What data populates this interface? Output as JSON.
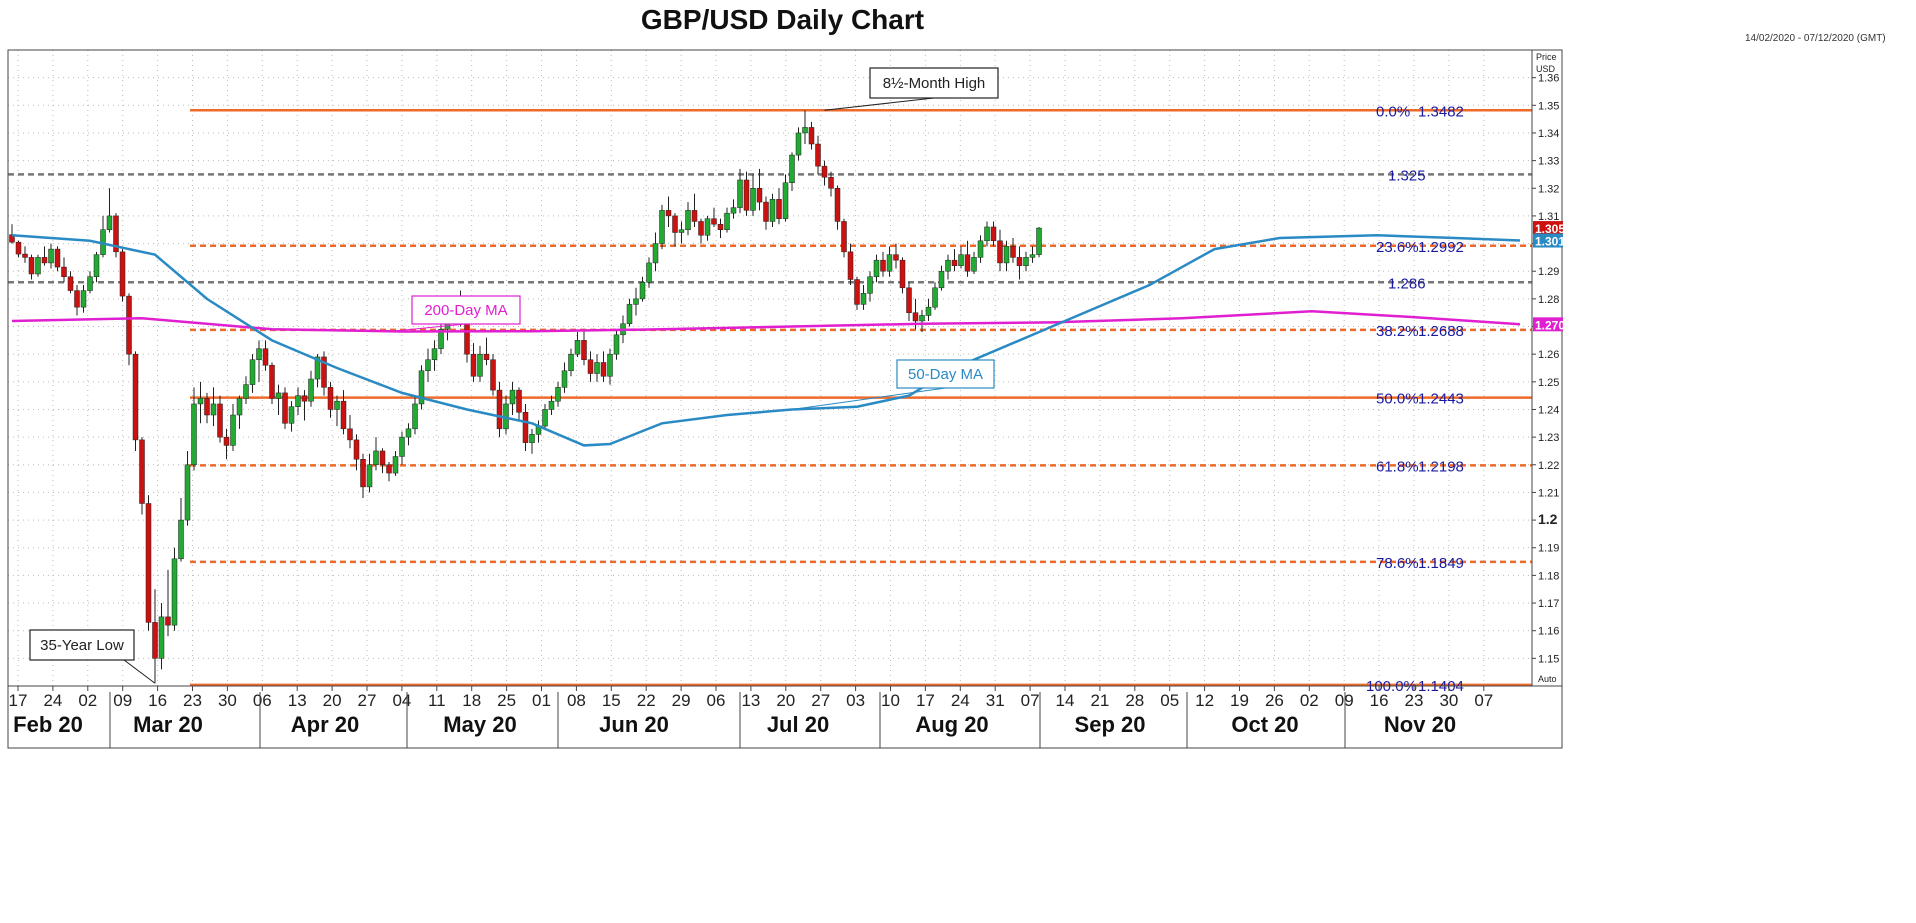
{
  "title": "GBP/USD Daily Chart",
  "date_range": "14/02/2020 - 07/12/2020 (GMT)",
  "axis": {
    "price_label": "Price",
    "unit_label": "USD",
    "auto_label": "Auto"
  },
  "chart_data": {
    "type": "candlestick",
    "title": "GBP/USD Daily Chart",
    "ylabel": "Price USD",
    "ylim": [
      1.14,
      1.37
    ],
    "y_ticks": [
      "1.36",
      "1.35",
      "1.34",
      "1.33",
      "1.32",
      "1.31",
      "1.30",
      "1.29",
      "1.28",
      "1.27",
      "1.26",
      "1.25",
      "1.24",
      "1.23",
      "1.22",
      "1.21",
      "1.2",
      "1.19",
      "1.18",
      "1.17",
      "1.16",
      "1.15"
    ],
    "y_tick_values": [
      1.36,
      1.35,
      1.34,
      1.33,
      1.32,
      1.31,
      1.3,
      1.29,
      1.28,
      1.27,
      1.26,
      1.25,
      1.24,
      1.23,
      1.22,
      1.21,
      1.2,
      1.19,
      1.18,
      1.17,
      1.16,
      1.15
    ],
    "x_day_ticks": [
      "17",
      "24",
      "02",
      "09",
      "16",
      "23",
      "30",
      "06",
      "13",
      "20",
      "27",
      "04",
      "11",
      "18",
      "25",
      "01",
      "08",
      "15",
      "22",
      "29",
      "06",
      "13",
      "20",
      "27",
      "03",
      "10",
      "17",
      "24",
      "31",
      "07",
      "14",
      "21",
      "28",
      "05",
      "12",
      "19",
      "26",
      "02",
      "09",
      "16",
      "23",
      "30",
      "07"
    ],
    "x_month_labels": [
      "Feb 20",
      "Mar 20",
      "Apr 20",
      "May 20",
      "Jun 20",
      "Jul 20",
      "Aug 20",
      "Sep 20",
      "Oct 20",
      "Nov 20"
    ],
    "candles": [
      [
        1.3032,
        1.307,
        1.3,
        1.3005
      ],
      [
        1.3005,
        1.301,
        1.295,
        1.2962
      ],
      [
        1.2962,
        1.299,
        1.293,
        1.295
      ],
      [
        1.295,
        1.296,
        1.287,
        1.289
      ],
      [
        1.289,
        1.296,
        1.288,
        1.295
      ],
      [
        1.295,
        1.299,
        1.292,
        1.293
      ],
      [
        1.293,
        1.3,
        1.291,
        1.298
      ],
      [
        1.298,
        1.299,
        1.29,
        1.2915
      ],
      [
        1.2915,
        1.295,
        1.286,
        1.288
      ],
      [
        1.288,
        1.29,
        1.282,
        1.283
      ],
      [
        1.283,
        1.285,
        1.274,
        1.277
      ],
      [
        1.277,
        1.285,
        1.275,
        1.283
      ],
      [
        1.283,
        1.29,
        1.282,
        1.288
      ],
      [
        1.288,
        1.297,
        1.286,
        1.296
      ],
      [
        1.296,
        1.31,
        1.295,
        1.305
      ],
      [
        1.305,
        1.32,
        1.304,
        1.31
      ],
      [
        1.31,
        1.311,
        1.295,
        1.297
      ],
      [
        1.297,
        1.298,
        1.279,
        1.281
      ],
      [
        1.281,
        1.282,
        1.256,
        1.26
      ],
      [
        1.26,
        1.261,
        1.225,
        1.229
      ],
      [
        1.229,
        1.23,
        1.202,
        1.206
      ],
      [
        1.206,
        1.209,
        1.16,
        1.163
      ],
      [
        1.163,
        1.175,
        1.141,
        1.15
      ],
      [
        1.15,
        1.17,
        1.146,
        1.165
      ],
      [
        1.165,
        1.182,
        1.158,
        1.162
      ],
      [
        1.162,
        1.19,
        1.16,
        1.186
      ],
      [
        1.186,
        1.208,
        1.185,
        1.2
      ],
      [
        1.2,
        1.225,
        1.198,
        1.22
      ],
      [
        1.22,
        1.248,
        1.218,
        1.242
      ],
      [
        1.242,
        1.25,
        1.235,
        1.244
      ],
      [
        1.244,
        1.246,
        1.235,
        1.238
      ],
      [
        1.238,
        1.248,
        1.234,
        1.242
      ],
      [
        1.242,
        1.245,
        1.228,
        1.23
      ],
      [
        1.23,
        1.233,
        1.222,
        1.227
      ],
      [
        1.227,
        1.242,
        1.225,
        1.238
      ],
      [
        1.238,
        1.245,
        1.233,
        1.244
      ],
      [
        1.244,
        1.252,
        1.242,
        1.249
      ],
      [
        1.249,
        1.26,
        1.246,
        1.258
      ],
      [
        1.258,
        1.265,
        1.25,
        1.262
      ],
      [
        1.262,
        1.265,
        1.254,
        1.256
      ],
      [
        1.256,
        1.257,
        1.242,
        1.244
      ],
      [
        1.244,
        1.249,
        1.238,
        1.246
      ],
      [
        1.246,
        1.248,
        1.233,
        1.235
      ],
      [
        1.235,
        1.243,
        1.232,
        1.241
      ],
      [
        1.241,
        1.248,
        1.238,
        1.245
      ],
      [
        1.245,
        1.247,
        1.236,
        1.243
      ],
      [
        1.243,
        1.254,
        1.241,
        1.251
      ],
      [
        1.251,
        1.26,
        1.248,
        1.259
      ],
      [
        1.259,
        1.261,
        1.245,
        1.248
      ],
      [
        1.248,
        1.25,
        1.237,
        1.24
      ],
      [
        1.24,
        1.245,
        1.234,
        1.243
      ],
      [
        1.243,
        1.247,
        1.231,
        1.233
      ],
      [
        1.233,
        1.238,
        1.226,
        1.229
      ],
      [
        1.229,
        1.231,
        1.218,
        1.222
      ],
      [
        1.222,
        1.224,
        1.208,
        1.212
      ],
      [
        1.212,
        1.224,
        1.21,
        1.22
      ],
      [
        1.22,
        1.23,
        1.218,
        1.225
      ],
      [
        1.225,
        1.226,
        1.217,
        1.22
      ],
      [
        1.22,
        1.221,
        1.214,
        1.217
      ],
      [
        1.217,
        1.225,
        1.216,
        1.223
      ],
      [
        1.223,
        1.232,
        1.22,
        1.23
      ],
      [
        1.23,
        1.235,
        1.227,
        1.233
      ],
      [
        1.233,
        1.245,
        1.231,
        1.242
      ],
      [
        1.242,
        1.256,
        1.24,
        1.254
      ],
      [
        1.254,
        1.262,
        1.25,
        1.258
      ],
      [
        1.258,
        1.265,
        1.254,
        1.262
      ],
      [
        1.262,
        1.272,
        1.26,
        1.269
      ],
      [
        1.269,
        1.278,
        1.265,
        1.276
      ],
      [
        1.276,
        1.281,
        1.272,
        1.279
      ],
      [
        1.279,
        1.283,
        1.27,
        1.272
      ],
      [
        1.272,
        1.274,
        1.257,
        1.26
      ],
      [
        1.26,
        1.264,
        1.25,
        1.252
      ],
      [
        1.252,
        1.263,
        1.25,
        1.26
      ],
      [
        1.26,
        1.266,
        1.256,
        1.258
      ],
      [
        1.258,
        1.26,
        1.245,
        1.247
      ],
      [
        1.247,
        1.25,
        1.23,
        1.233
      ],
      [
        1.233,
        1.245,
        1.231,
        1.242
      ],
      [
        1.242,
        1.25,
        1.238,
        1.247
      ],
      [
        1.247,
        1.248,
        1.236,
        1.239
      ],
      [
        1.239,
        1.242,
        1.225,
        1.228
      ],
      [
        1.228,
        1.233,
        1.224,
        1.231
      ],
      [
        1.231,
        1.236,
        1.228,
        1.234
      ],
      [
        1.234,
        1.242,
        1.233,
        1.24
      ],
      [
        1.24,
        1.245,
        1.238,
        1.243
      ],
      [
        1.243,
        1.25,
        1.241,
        1.248
      ],
      [
        1.248,
        1.257,
        1.246,
        1.254
      ],
      [
        1.254,
        1.262,
        1.252,
        1.26
      ],
      [
        1.26,
        1.268,
        1.259,
        1.265
      ],
      [
        1.265,
        1.269,
        1.256,
        1.258
      ],
      [
        1.258,
        1.261,
        1.25,
        1.253
      ],
      [
        1.253,
        1.26,
        1.25,
        1.257
      ],
      [
        1.257,
        1.261,
        1.25,
        1.252
      ],
      [
        1.252,
        1.262,
        1.249,
        1.26
      ],
      [
        1.26,
        1.269,
        1.258,
        1.267
      ],
      [
        1.267,
        1.274,
        1.264,
        1.271
      ],
      [
        1.271,
        1.28,
        1.27,
        1.278
      ],
      [
        1.278,
        1.284,
        1.274,
        1.28
      ],
      [
        1.28,
        1.288,
        1.279,
        1.286
      ],
      [
        1.286,
        1.295,
        1.284,
        1.293
      ],
      [
        1.293,
        1.304,
        1.29,
        1.3
      ],
      [
        1.3,
        1.314,
        1.298,
        1.312
      ],
      [
        1.312,
        1.317,
        1.306,
        1.31
      ],
      [
        1.31,
        1.311,
        1.299,
        1.304
      ],
      [
        1.304,
        1.308,
        1.3,
        1.305
      ],
      [
        1.305,
        1.315,
        1.303,
        1.312
      ],
      [
        1.312,
        1.318,
        1.306,
        1.308
      ],
      [
        1.308,
        1.309,
        1.3,
        1.303
      ],
      [
        1.303,
        1.31,
        1.301,
        1.309
      ],
      [
        1.309,
        1.313,
        1.306,
        1.307
      ],
      [
        1.307,
        1.309,
        1.302,
        1.305
      ],
      [
        1.305,
        1.313,
        1.304,
        1.311
      ],
      [
        1.311,
        1.316,
        1.309,
        1.313
      ],
      [
        1.313,
        1.327,
        1.311,
        1.323
      ],
      [
        1.323,
        1.326,
        1.31,
        1.312
      ],
      [
        1.312,
        1.325,
        1.31,
        1.32
      ],
      [
        1.32,
        1.327,
        1.312,
        1.315
      ],
      [
        1.315,
        1.317,
        1.305,
        1.308
      ],
      [
        1.308,
        1.318,
        1.306,
        1.316
      ],
      [
        1.316,
        1.32,
        1.307,
        1.309
      ],
      [
        1.309,
        1.325,
        1.308,
        1.322
      ],
      [
        1.322,
        1.333,
        1.319,
        1.332
      ],
      [
        1.332,
        1.342,
        1.33,
        1.34
      ],
      [
        1.34,
        1.3482,
        1.336,
        1.342
      ],
      [
        1.342,
        1.344,
        1.334,
        1.336
      ],
      [
        1.336,
        1.339,
        1.325,
        1.328
      ],
      [
        1.328,
        1.33,
        1.321,
        1.324
      ],
      [
        1.324,
        1.326,
        1.317,
        1.32
      ],
      [
        1.32,
        1.321,
        1.305,
        1.308
      ],
      [
        1.308,
        1.309,
        1.295,
        1.297
      ],
      [
        1.297,
        1.3,
        1.285,
        1.287
      ],
      [
        1.287,
        1.288,
        1.276,
        1.278
      ],
      [
        1.278,
        1.285,
        1.276,
        1.282
      ],
      [
        1.282,
        1.29,
        1.279,
        1.288
      ],
      [
        1.288,
        1.296,
        1.286,
        1.294
      ],
      [
        1.294,
        1.297,
        1.288,
        1.29
      ],
      [
        1.29,
        1.299,
        1.288,
        1.296
      ],
      [
        1.296,
        1.3,
        1.291,
        1.294
      ],
      [
        1.294,
        1.295,
        1.282,
        1.284
      ],
      [
        1.284,
        1.286,
        1.272,
        1.275
      ],
      [
        1.275,
        1.28,
        1.269,
        1.272
      ],
      [
        1.272,
        1.276,
        1.268,
        1.274
      ],
      [
        1.274,
        1.28,
        1.272,
        1.277
      ],
      [
        1.277,
        1.286,
        1.276,
        1.284
      ],
      [
        1.284,
        1.292,
        1.283,
        1.29
      ],
      [
        1.29,
        1.296,
        1.287,
        1.294
      ],
      [
        1.294,
        1.298,
        1.29,
        1.292
      ],
      [
        1.292,
        1.299,
        1.291,
        1.296
      ],
      [
        1.296,
        1.301,
        1.288,
        1.29
      ],
      [
        1.29,
        1.297,
        1.289,
        1.295
      ],
      [
        1.295,
        1.303,
        1.293,
        1.301
      ],
      [
        1.301,
        1.308,
        1.299,
        1.306
      ],
      [
        1.306,
        1.308,
        1.299,
        1.301
      ],
      [
        1.301,
        1.305,
        1.29,
        1.293
      ],
      [
        1.293,
        1.301,
        1.29,
        1.299
      ],
      [
        1.299,
        1.302,
        1.293,
        1.295
      ],
      [
        1.295,
        1.299,
        1.287,
        1.292
      ],
      [
        1.292,
        1.297,
        1.29,
        1.295
      ],
      [
        1.295,
        1.299,
        1.293,
        1.296
      ],
      [
        1.296,
        1.306,
        1.295,
        1.3056
      ]
    ],
    "series": [
      {
        "name": "200-Day MA",
        "color": "#e020d0",
        "values": [
          [
            0,
            1.272
          ],
          [
            20,
            1.273
          ],
          [
            40,
            1.269
          ],
          [
            60,
            1.2682
          ],
          [
            80,
            1.2683
          ],
          [
            100,
            1.269
          ],
          [
            120,
            1.27
          ],
          [
            140,
            1.271
          ],
          [
            160,
            1.2715
          ],
          [
            180,
            1.273
          ],
          [
            200,
            1.2755
          ],
          [
            215,
            1.2735
          ],
          [
            232,
            1.2708
          ]
        ]
      },
      {
        "name": "50-Day MA",
        "color": "#2a8ac4",
        "values": [
          [
            0,
            1.303
          ],
          [
            12,
            1.301
          ],
          [
            22,
            1.296
          ],
          [
            30,
            1.28
          ],
          [
            40,
            1.265
          ],
          [
            50,
            1.255
          ],
          [
            60,
            1.246
          ],
          [
            70,
            1.24
          ],
          [
            80,
            1.235
          ],
          [
            88,
            1.227
          ],
          [
            92,
            1.2275
          ],
          [
            100,
            1.235
          ],
          [
            110,
            1.238
          ],
          [
            120,
            1.24
          ],
          [
            130,
            1.241
          ],
          [
            138,
            1.245
          ],
          [
            145,
            1.255
          ],
          [
            160,
            1.27
          ],
          [
            175,
            1.285
          ],
          [
            185,
            1.298
          ],
          [
            195,
            1.302
          ],
          [
            210,
            1.303
          ],
          [
            222,
            1.302
          ],
          [
            232,
            1.3011
          ]
        ]
      }
    ],
    "horizontal_levels": [
      {
        "label": "0.0%",
        "value": "1.3482",
        "price": 1.3482,
        "style": "solid",
        "color": "#ee6a2a"
      },
      {
        "label": "",
        "value": "1.325",
        "price": 1.325,
        "style": "dashed",
        "color": "#777777"
      },
      {
        "label": "23.6%",
        "value": "1.2992",
        "price": 1.2992,
        "style": "dashed",
        "color": "#ee6a2a"
      },
      {
        "label": "",
        "value": "1.286",
        "price": 1.286,
        "style": "dashed",
        "color": "#777777"
      },
      {
        "label": "38.2%",
        "value": "1.2688",
        "price": 1.2688,
        "style": "dashed",
        "color": "#ee6a2a"
      },
      {
        "label": "50.0%",
        "value": "1.2443",
        "price": 1.2443,
        "style": "solid",
        "color": "#ee6a2a"
      },
      {
        "label": "61.8%",
        "value": "1.2198",
        "price": 1.2198,
        "style": "dashed",
        "color": "#ee6a2a"
      },
      {
        "label": "78.6%",
        "value": "1.1849",
        "price": 1.1849,
        "style": "dashed",
        "color": "#ee6a2a"
      },
      {
        "label": "100.0%",
        "value": "1.1404",
        "price": 1.1404,
        "style": "solid",
        "color": "#ee6a2a"
      }
    ],
    "price_tags": [
      {
        "value": "1.3056",
        "price": 1.3056,
        "color": "#cc1111"
      },
      {
        "value": "1.3011",
        "price": 1.3011,
        "color": "#2a8ac4"
      },
      {
        "value": "1.2708",
        "price": 1.2708,
        "color": "#e020d0"
      }
    ],
    "annotations": [
      {
        "text": "8½-Month High",
        "color": "#222222",
        "target_bar": 125,
        "target_price": 1.3482
      },
      {
        "text": "35-Year Low",
        "color": "#222222",
        "target_bar": 22,
        "target_price": 1.141
      },
      {
        "text": "200-Day MA",
        "color": "#e020d0",
        "target_bar": 58,
        "target_price": 1.2682
      },
      {
        "text": "50-Day MA",
        "color": "#2a8ac4",
        "target_bar": 120,
        "target_price": 1.24
      }
    ],
    "colors": {
      "up": "#22aa33",
      "down": "#cc1111",
      "grid": "#bbbbbb",
      "fib": "#ee6a2a"
    }
  }
}
